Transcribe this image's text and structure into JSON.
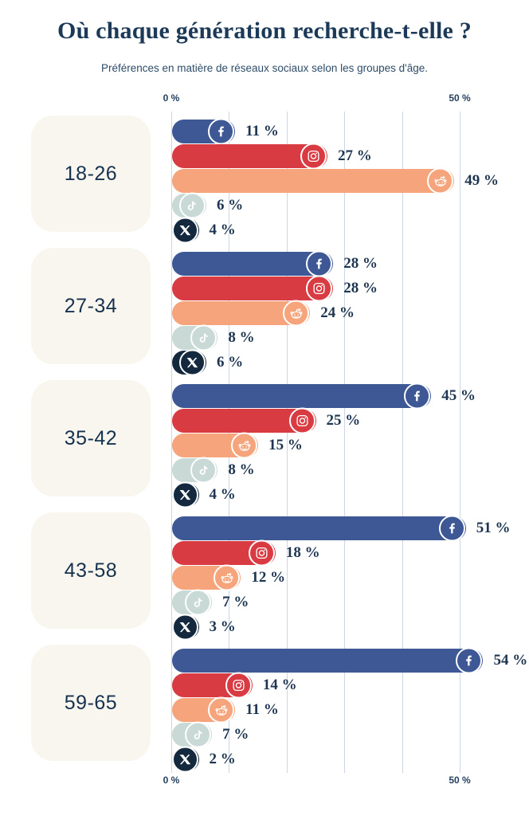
{
  "header": {
    "title": "Où chaque génération recherche-t-elle ?",
    "subtitle": "Préférences en matière de réseaux sociaux selon les groupes d'âge."
  },
  "axis": {
    "top": [
      "0 %",
      "50 %"
    ],
    "bottom": [
      "0 %",
      "50 %"
    ]
  },
  "colors": {
    "background": "#ffffff",
    "card": "#f8f6ee",
    "gridline": "#cdd6e4",
    "title_text": "#1c3a57",
    "value_text": "#1d3550",
    "facebook": "#3e5896",
    "instagram": "#d93b43",
    "reddit": "#f5a47b",
    "tiktok": "#c9dad6",
    "x": "#14293d"
  },
  "chart_data": {
    "type": "bar",
    "orientation": "horizontal",
    "title": "Où chaque génération recherche-t-elle ?",
    "subtitle": "Préférences en matière de réseaux sociaux selon les groupes d'âge.",
    "categories": [
      "18-26",
      "27-34",
      "35-42",
      "43-58",
      "59-65"
    ],
    "series": [
      {
        "name": "Facebook",
        "icon": "facebook-icon",
        "color": "#3e5896",
        "values": [
          11,
          28,
          45,
          51,
          54
        ]
      },
      {
        "name": "Instagram",
        "icon": "instagram-icon",
        "color": "#d93b43",
        "values": [
          27,
          28,
          25,
          18,
          14
        ]
      },
      {
        "name": "Reddit",
        "icon": "reddit-icon",
        "color": "#f5a47b",
        "values": [
          49,
          24,
          15,
          12,
          11
        ]
      },
      {
        "name": "TikTok",
        "icon": "tiktok-icon",
        "color": "#c9dad6",
        "values": [
          6,
          8,
          8,
          7,
          7
        ]
      },
      {
        "name": "X",
        "icon": "x-icon",
        "color": "#14293d",
        "values": [
          4,
          6,
          4,
          3,
          2
        ]
      }
    ],
    "value_suffix": " %",
    "xlim": [
      0,
      50
    ],
    "tick_labels": [
      "0 %",
      "50 %"
    ],
    "gridlines_pct": [
      0,
      10,
      20,
      30,
      40,
      50
    ],
    "legend": "none",
    "grid": "vertical"
  }
}
